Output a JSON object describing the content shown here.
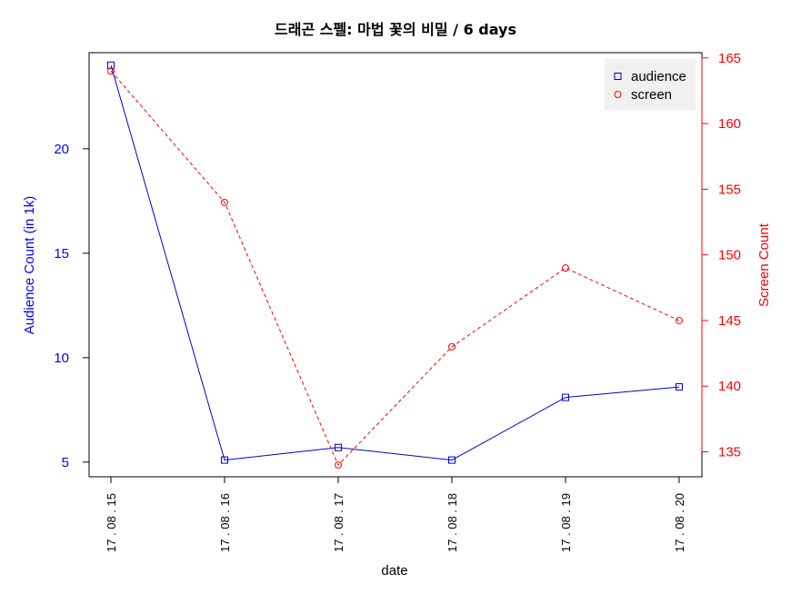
{
  "chart_data": {
    "type": "line",
    "title": "드래곤 스펠: 마법 꽃의 비밀 / 6 days",
    "xlabel": "date",
    "categories": [
      "17 . 08 . 15",
      "17 . 08 . 16",
      "17 . 08 . 17",
      "17 . 08 . 18",
      "17 . 08 . 19",
      "17 . 08 . 20"
    ],
    "left_axis": {
      "label": "Audience Count (in 1k)",
      "ticks": [
        5,
        10,
        15,
        20
      ],
      "ylim": [
        4.3,
        24.6
      ],
      "color": "#0000ff"
    },
    "right_axis": {
      "label": "Screen Count",
      "ticks": [
        135,
        140,
        145,
        150,
        155,
        160,
        165
      ],
      "ylim": [
        133.1,
        165.4
      ],
      "color": "#ff0000"
    },
    "series": [
      {
        "name": "audience",
        "axis": "left",
        "color": "#0000cc",
        "marker": "square",
        "line": "solid",
        "values": [
          24.0,
          5.1,
          5.7,
          5.1,
          8.1,
          8.6
        ]
      },
      {
        "name": "screen",
        "axis": "right",
        "color": "#ff0000",
        "marker": "circle",
        "line": "dashed",
        "values": [
          164,
          154,
          134,
          143,
          149,
          145
        ]
      }
    ],
    "legend": {
      "position": "top-right",
      "entries": [
        "audience",
        "screen"
      ]
    },
    "grid": false
  }
}
